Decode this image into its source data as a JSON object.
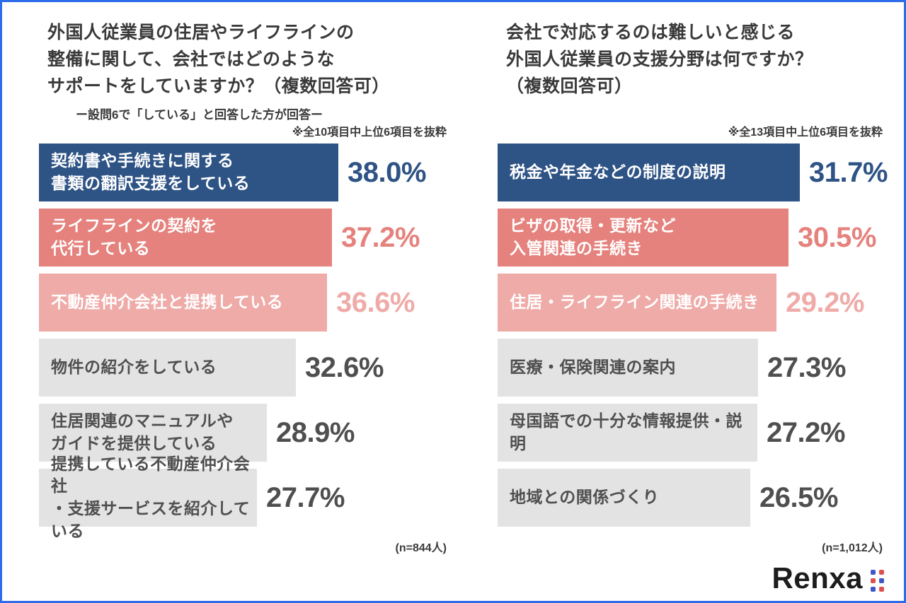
{
  "chart_data": [
    {
      "type": "bar",
      "orientation": "horizontal",
      "title": "外国人従業員の住居やライフラインの\n整備に関して、会社ではどのような\nサポートをしていますか？（複数回答可）",
      "subtitle": "ー設問6で「している」と回答した方が回答ー",
      "note": "※全10項目中上位6項目を抜粋",
      "sample_note": "(n=844人)",
      "xlim": [
        0,
        40
      ],
      "legend": false,
      "bars": [
        {
          "label": "契約書や手続きに関する\n書類の翻訳支援をしている",
          "value": 38.0,
          "display": "38.0%",
          "bar_color": "#2e5385",
          "label_color": "#ffffff",
          "value_color": "#2e5385"
        },
        {
          "label": "ライフラインの契約を\n代行している",
          "value": 37.2,
          "display": "37.2%",
          "bar_color": "#e5827d",
          "label_color": "#ffffff",
          "value_color": "#e5827d"
        },
        {
          "label": "不動産仲介会社と提携している",
          "value": 36.6,
          "display": "36.6%",
          "bar_color": "#efaba8",
          "label_color": "#ffffff",
          "value_color": "#efaba8"
        },
        {
          "label": "物件の紹介をしている",
          "value": 32.6,
          "display": "32.6%",
          "bar_color": "#e3e3e3",
          "label_color": "#4f4f4f",
          "value_color": "#4f4f4f"
        },
        {
          "label": "住居関連のマニュアルや\nガイドを提供している",
          "value": 28.9,
          "display": "28.9%",
          "bar_color": "#e3e3e3",
          "label_color": "#4f4f4f",
          "value_color": "#4f4f4f"
        },
        {
          "label": "提携している不動産仲介会社\n・支援サービスを紹介している",
          "value": 27.7,
          "display": "27.7%",
          "bar_color": "#e3e3e3",
          "label_color": "#4f4f4f",
          "value_color": "#4f4f4f"
        }
      ]
    },
    {
      "type": "bar",
      "orientation": "horizontal",
      "title": "会社で対応するのは難しいと感じる\n外国人従業員の支援分野は何ですか？\n（複数回答可）",
      "subtitle": "",
      "note": "※全13項目中上位6項目を抜粋",
      "sample_note": "(n=1,012人)",
      "xlim": [
        0,
        35
      ],
      "legend": false,
      "bars": [
        {
          "label": "税金や年金などの制度の説明",
          "value": 31.7,
          "display": "31.7%",
          "bar_color": "#2e5385",
          "label_color": "#ffffff",
          "value_color": "#2e5385"
        },
        {
          "label": "ビザの取得・更新など\n入管関連の手続き",
          "value": 30.5,
          "display": "30.5%",
          "bar_color": "#e5827d",
          "label_color": "#ffffff",
          "value_color": "#e5827d"
        },
        {
          "label": "住居・ライフライン関連の手続き",
          "value": 29.2,
          "display": "29.2%",
          "bar_color": "#efaba8",
          "label_color": "#ffffff",
          "value_color": "#efaba8"
        },
        {
          "label": "医療・保険関連の案内",
          "value": 27.3,
          "display": "27.3%",
          "bar_color": "#e3e3e3",
          "label_color": "#4f4f4f",
          "value_color": "#4f4f4f"
        },
        {
          "label": "母国語での十分な情報提供・説明",
          "value": 27.2,
          "display": "27.2%",
          "bar_color": "#e3e3e3",
          "label_color": "#4f4f4f",
          "value_color": "#4f4f4f"
        },
        {
          "label": "地域との関係づくり",
          "value": 26.5,
          "display": "26.5%",
          "bar_color": "#e3e3e3",
          "label_color": "#4f4f4f",
          "value_color": "#4f4f4f"
        }
      ]
    }
  ],
  "logo": {
    "text": "Renxa",
    "dot_colors": [
      "#4056c8",
      "#d9534f"
    ]
  },
  "frame": {
    "border_color": "#2c6bea"
  }
}
